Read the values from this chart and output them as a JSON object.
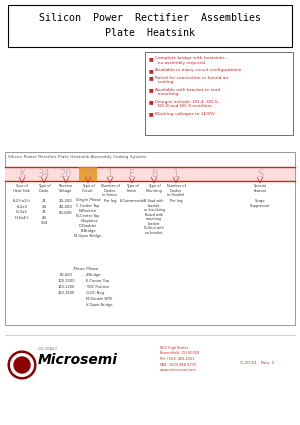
{
  "title_line1": "Silicon  Power  Rectifier  Assemblies",
  "title_line2": "Plate  Heatsink",
  "features": [
    "Complete bridge with heatsinks –",
    "  no assembly required",
    "Available in many circuit configurations",
    "Rated for convection or forced air",
    "  cooling",
    "Available with bracket or stud",
    "  mounting",
    "Designs include: DO-4, DO-5,",
    "  DO-8 and DO-9 rectifiers",
    "Blocking voltages to 1600V"
  ],
  "coding_title": "Silicon Power Rectifier Plate Heatsink Assembly Coding System",
  "code_letters": [
    "K",
    "34",
    "20",
    "B",
    "1",
    "E",
    "B",
    "1",
    "S"
  ],
  "code_labels": [
    "Size of\nHeat Sink",
    "Type of\nDiode",
    "Reverse\nVoltage",
    "Type of\nCircuit",
    "Number of\nDiodes\nin Series",
    "Type of\nFinish",
    "Type of\nMounting",
    "Number of\nDiodes\nin Parallel",
    "Special\nFeature"
  ],
  "col1_heat": [
    "6-2½x2½",
    "6-3x3",
    "G-3x3",
    "H-3x4½"
  ],
  "col2_diode": [
    "21",
    "24",
    "31",
    "43",
    "504"
  ],
  "col3_voltage_sp": [
    "20-200",
    "40-400",
    "60-600"
  ],
  "circuit_sp_label": "Single Phase",
  "circuit_sp": [
    "C-Center Tap",
    "N-Positive",
    "N-Center Tap",
    "  Negative",
    "D-Doubler",
    "B-Bridge",
    "M-Open Bridge"
  ],
  "circuit_tp_label": "Three Phase",
  "circuit_tp_voltages": [
    "60-600",
    "100-1000",
    "120-1200",
    "160-1600"
  ],
  "circuit_tp_circuits": [
    "Z-Bridge",
    "E-Center Top",
    "Y-DC Positive",
    "Q-DC Neg.",
    "M-Double WYE",
    "V-Open Bridge"
  ],
  "finish_text": "E-Commercial",
  "mounting_text": "B-Stud with\nbracket\nor Insulating\nBoard with\nmounting\nbracket\nN-Stud with\nno bracket",
  "per_leg": "Per leg",
  "special_text": "Surge\nSuppressor",
  "bg_color": "#ffffff",
  "title_color": "#000000",
  "feature_color_red": "#cc2222",
  "border_color": "#000000",
  "red_line_color": "#cc2222",
  "orange_highlight": "#e8900a",
  "rev_text": "3-20-01   Rev. 1",
  "address_line1": "800 High Street",
  "address_line2": "Broomfield, CO 80020",
  "address_line3": "PH: (303) 469-2161",
  "address_line4": "FAX: (303) 466-5775",
  "address_line5": "www.microsemi.com"
}
